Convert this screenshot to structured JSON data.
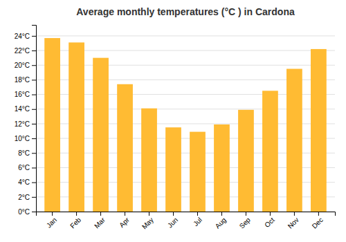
{
  "chart_data": {
    "type": "bar",
    "title": "Average monthly temperatures (°C ) in Cardona",
    "categories": [
      "Jan",
      "Feb",
      "Mar",
      "Apr",
      "May",
      "Jun",
      "Jul",
      "Aug",
      "Sep",
      "Oct",
      "Nov",
      "Dec"
    ],
    "values": [
      23.7,
      23.1,
      21.0,
      17.4,
      14.1,
      11.5,
      10.9,
      11.9,
      13.9,
      16.5,
      19.5,
      22.2
    ],
    "color": "#FFBB33",
    "ylim": [
      0,
      25.5
    ],
    "yticks": [
      {
        "value": 0,
        "label": "0°C"
      },
      {
        "value": 2,
        "label": "2°C"
      },
      {
        "value": 4,
        "label": "4°C"
      },
      {
        "value": 6,
        "label": "6°C"
      },
      {
        "value": 8,
        "label": "8°C"
      },
      {
        "value": 10,
        "label": "10°C"
      },
      {
        "value": 12,
        "label": "12°C"
      },
      {
        "value": 14,
        "label": "14°C"
      },
      {
        "value": 16,
        "label": "16°C"
      },
      {
        "value": 18,
        "label": "18°C"
      },
      {
        "value": 20,
        "label": "20°C"
      },
      {
        "value": 22,
        "label": "22°C"
      },
      {
        "value": 24,
        "label": "24°C"
      }
    ],
    "grid": true
  }
}
